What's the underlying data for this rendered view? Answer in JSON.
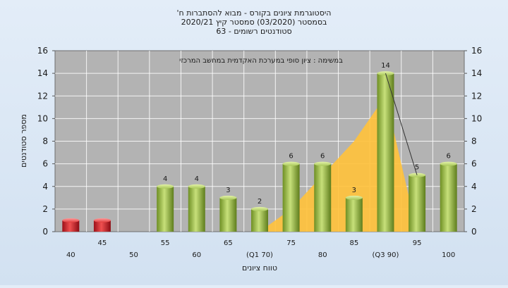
{
  "chart_data": {
    "type": "bar",
    "title_lines": [
      "'היסטוגרמת ציונים בקורס - מבוא להסתברות ח",
      "בסמסטר  (03/2020)  סמסטר קיץ  2020/21",
      "סטודנטים רשומים - 63"
    ],
    "annotation": "במשימה : ציון סופי במערכת האקדמית במחשב המרכזי",
    "xlabel": "טווח ציונים",
    "ylabel": "מספר סטודנטים",
    "ylim": [
      0,
      16
    ],
    "y_ticks": [
      0,
      2,
      4,
      6,
      8,
      10,
      12,
      14,
      16
    ],
    "categories": [
      "40",
      "45",
      "50",
      "55",
      "60",
      "65",
      "(Q1 70)",
      "75",
      "80",
      "85",
      "(Q3 90)",
      "95",
      "100"
    ],
    "values": [
      1,
      1,
      0,
      4,
      4,
      3,
      2,
      6,
      6,
      3,
      14,
      5,
      6
    ],
    "value_labels": [
      "",
      "",
      "",
      "4",
      "4",
      "3",
      "2",
      "6",
      "6",
      "3",
      "14",
      "5",
      "6"
    ],
    "bar_colors": [
      "#d0202a",
      "#d0202a",
      "#92b842",
      "#92b842",
      "#92b842",
      "#92b842",
      "#92b842",
      "#92b842",
      "#92b842",
      "#92b842",
      "#92b842",
      "#92b842",
      "#92b842"
    ],
    "area_values": [
      0,
      0,
      0,
      0,
      0,
      0,
      0,
      2,
      5,
      8,
      12,
      0,
      0
    ],
    "area_color": "#ffc23d",
    "grid": true,
    "plot_background": "#b3b3b3"
  }
}
